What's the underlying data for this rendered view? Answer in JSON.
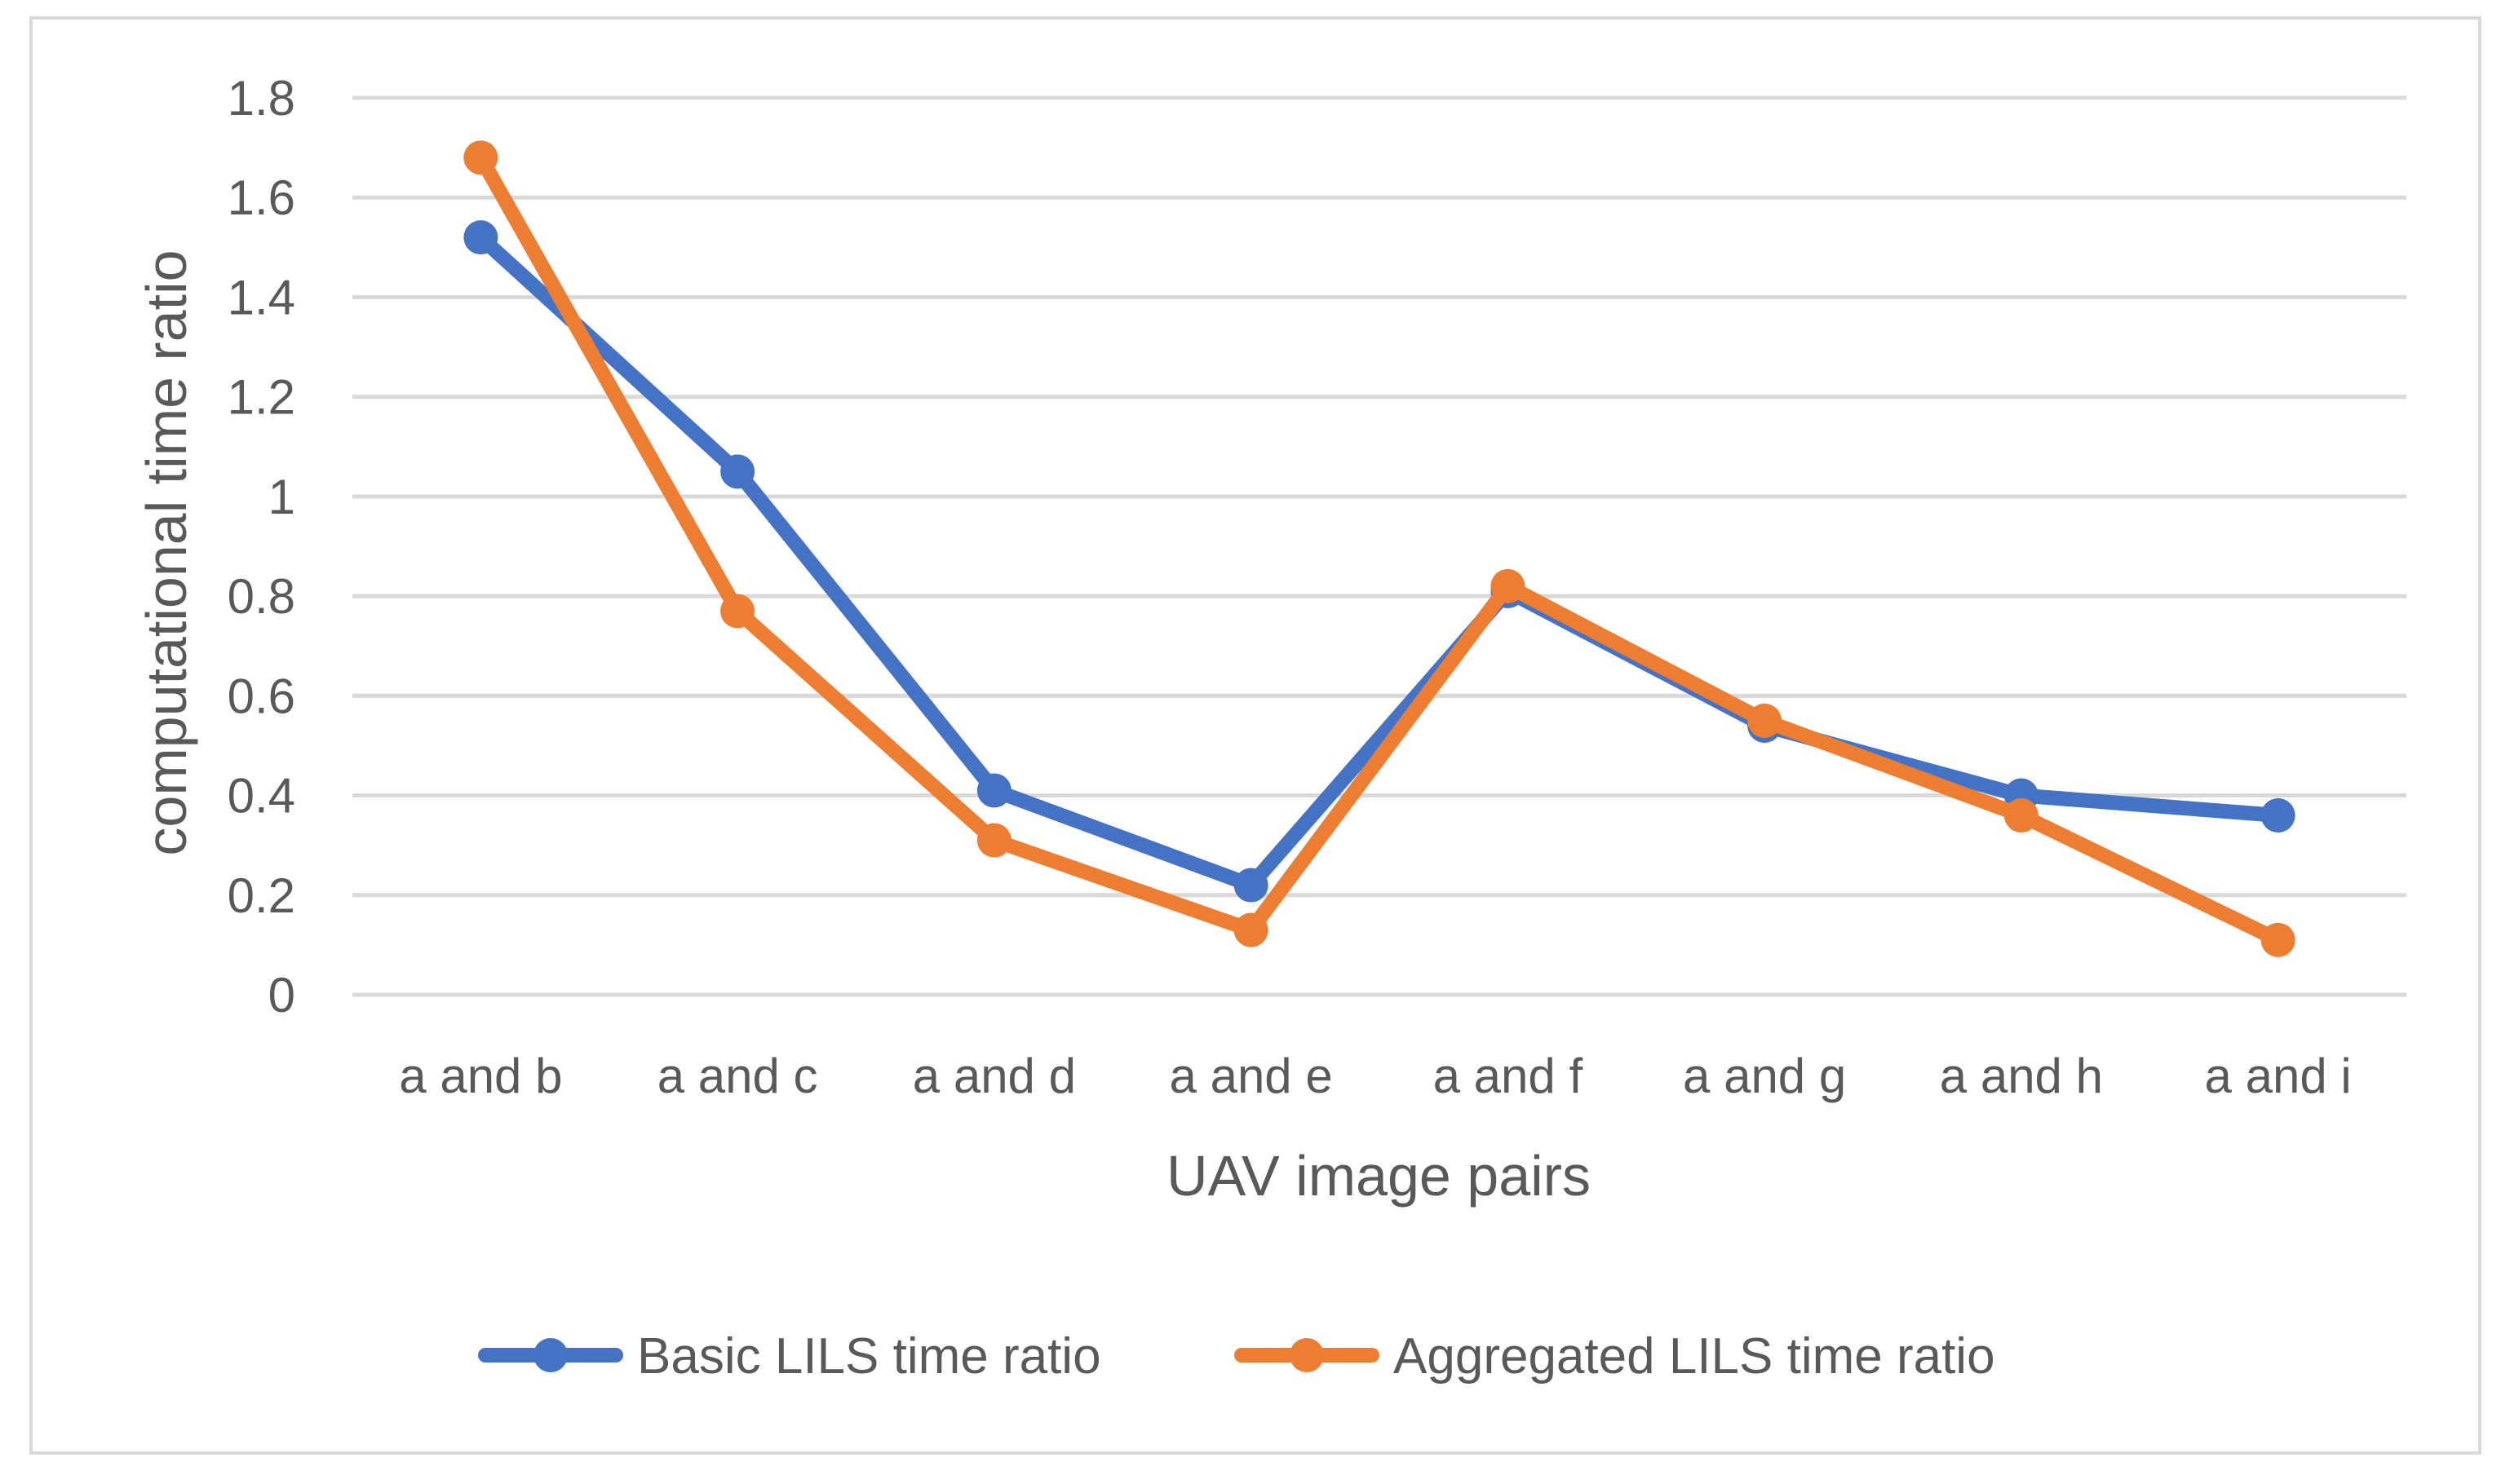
{
  "chart_data": {
    "type": "line",
    "title": "",
    "xlabel": "UAV image pairs",
    "ylabel": "computational time ratio",
    "categories": [
      "a and b",
      "a and c",
      "a and d",
      "a and e",
      "a and f",
      "a and g",
      "a and h",
      "a and i"
    ],
    "ylim": [
      0,
      1.8
    ],
    "yticks": [
      "0",
      "0.2",
      "0.4",
      "0.6",
      "0.8",
      "1",
      "1.2",
      "1.4",
      "1.6",
      "1.8"
    ],
    "grid": true,
    "legend_position": "bottom",
    "series": [
      {
        "name": "Basic LILS time ratio",
        "color": "#4472c4",
        "values": [
          1.52,
          1.05,
          0.41,
          0.22,
          0.81,
          0.54,
          0.4,
          0.36
        ]
      },
      {
        "name": "Aggregated LILS time ratio",
        "color": "#ed7d31",
        "values": [
          1.68,
          0.77,
          0.31,
          0.13,
          0.82,
          0.55,
          0.36,
          0.11
        ]
      }
    ]
  }
}
